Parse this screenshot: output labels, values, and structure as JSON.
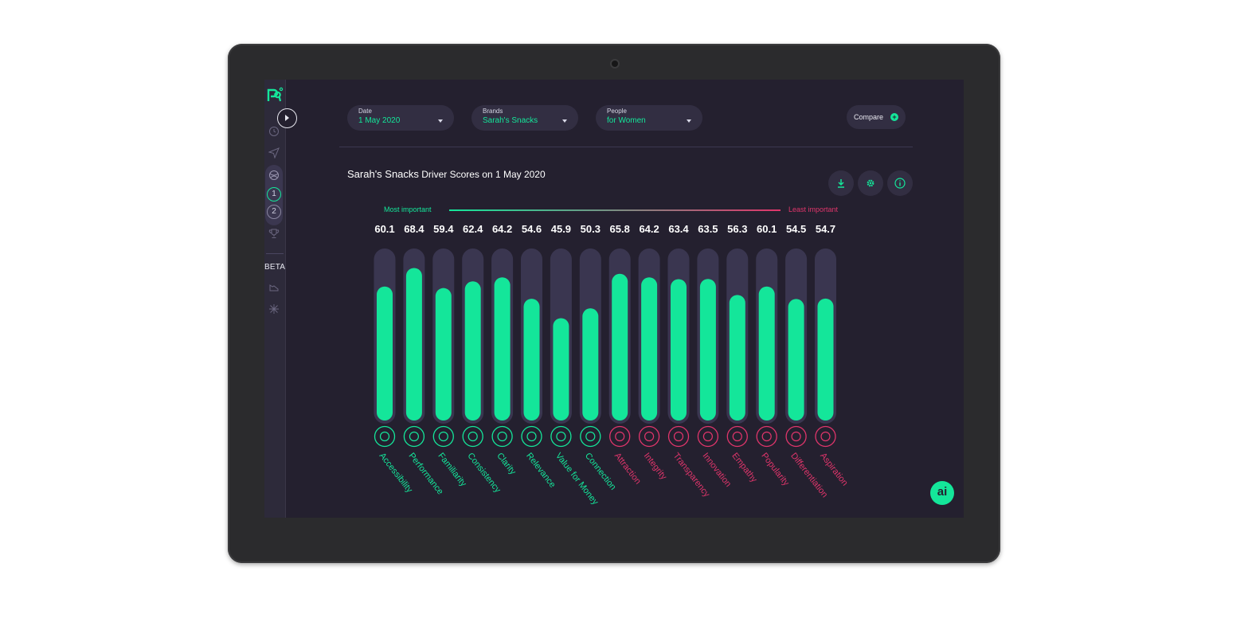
{
  "filters": {
    "date": {
      "label": "Date",
      "value": "1 May 2020"
    },
    "brands": {
      "label": "Brands",
      "value": "Sarah's Snacks"
    },
    "people": {
      "label": "People",
      "value": "for Women"
    }
  },
  "compare_label": "Compare",
  "sidebar": {
    "beta_label": "BETA",
    "items": [
      "1",
      "2"
    ]
  },
  "title": {
    "brand": "Sarah's Snacks",
    "rest": " Driver Scores on 1 May 2020"
  },
  "legend": {
    "most": "Most important",
    "least": "Least important"
  },
  "fab_label": "ai",
  "colors": {
    "accent": "#14e69a",
    "negative": "#e0356b",
    "track": "#3a3650",
    "background": "#24202f"
  },
  "chart_data": {
    "type": "bar",
    "ylim": [
      0,
      100
    ],
    "categories": [
      "Accessibility",
      "Performance",
      "Familiarity",
      "Consistency",
      "Clarity",
      "Relevance",
      "Value for Money",
      "Connection",
      "Attraction",
      "Integrity",
      "Transparency",
      "Innovation",
      "Empathy",
      "Popularity",
      "Differentiation",
      "Aspiration"
    ],
    "values": [
      60.1,
      68.4,
      59.4,
      62.4,
      64.2,
      54.6,
      45.9,
      50.3,
      65.8,
      64.2,
      63.4,
      63.5,
      56.3,
      60.1,
      54.5,
      54.7
    ],
    "label_color_groups": [
      "green",
      "green",
      "green",
      "green",
      "green",
      "green",
      "green",
      "green",
      "red",
      "red",
      "red",
      "red",
      "red",
      "red",
      "red",
      "red"
    ]
  }
}
